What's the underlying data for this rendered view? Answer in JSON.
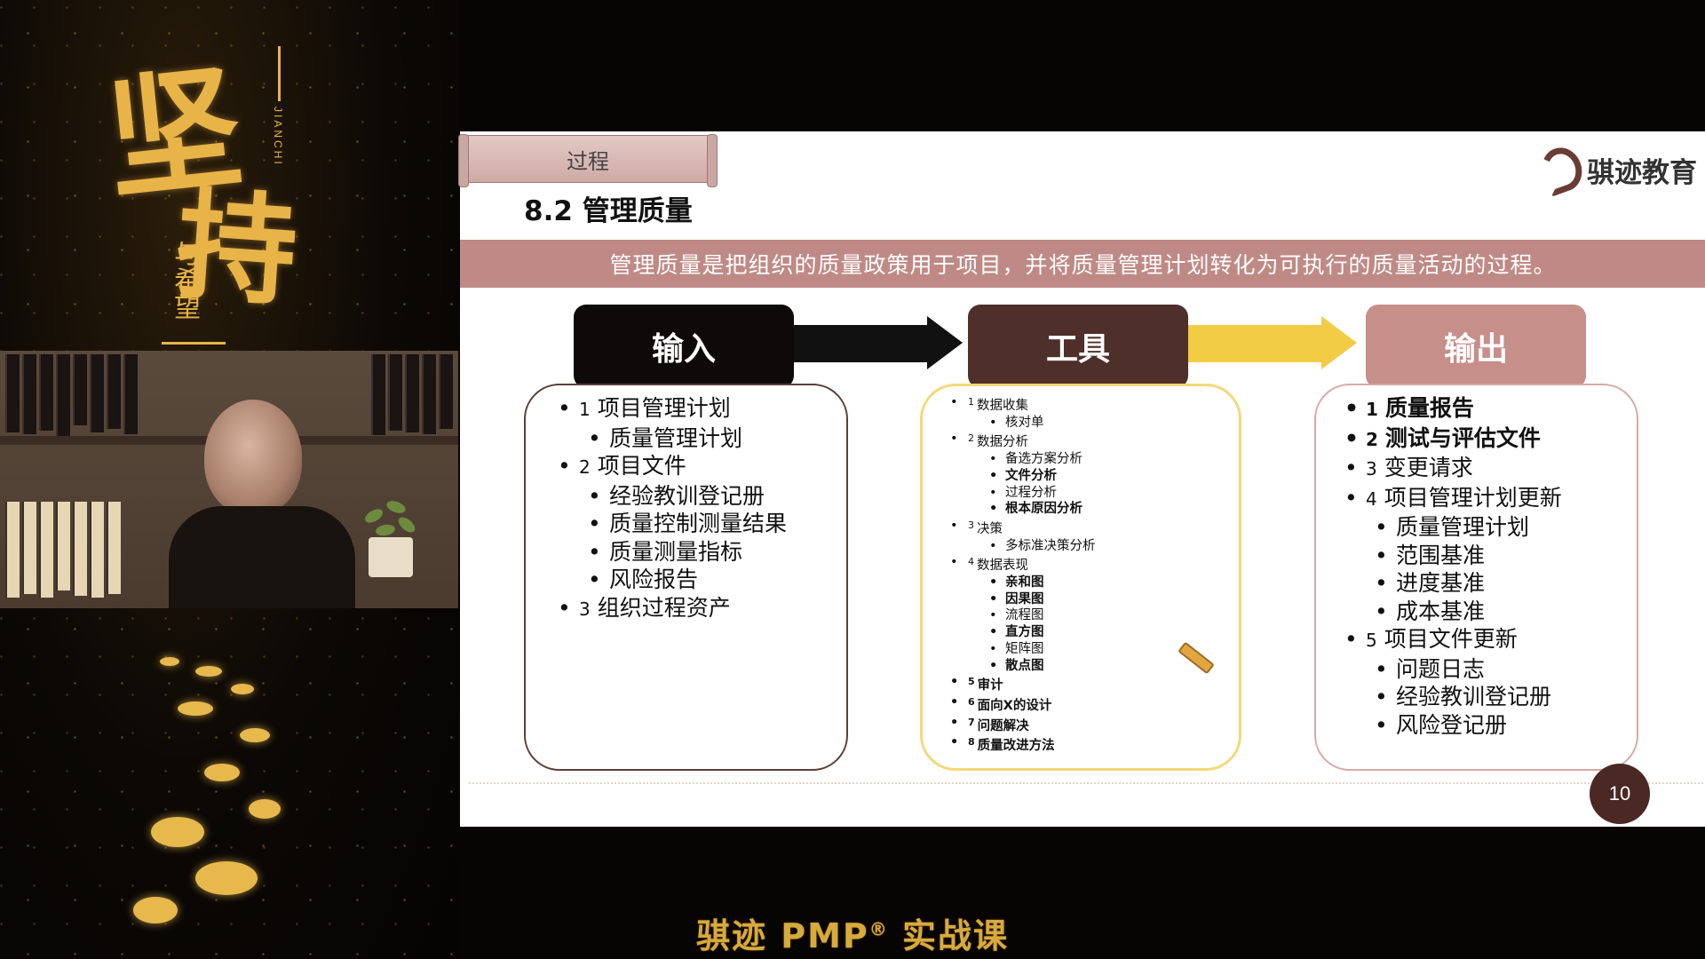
{
  "left_panel": {
    "calligraphy_main_1": "坚",
    "calligraphy_main_2": "持",
    "calligraphy_small": "与希望",
    "pinyin": "JIANCHI"
  },
  "slide": {
    "process_tag": "过程",
    "title": "8.2 管理质量",
    "logo_text": "骐迹教育",
    "definition": "管理质量是把组织的质量政策用于项目，并将质量管理计划转化为可执行的质量活动的过程。",
    "inputs_heading": "输入",
    "tools_heading": "工具",
    "outputs_heading": "输出",
    "inputs": [
      {
        "num": "1",
        "text": "项目管理计划",
        "level": 1
      },
      {
        "num": "",
        "text": "质量管理计划",
        "level": 2
      },
      {
        "num": "2",
        "text": "项目文件",
        "level": 1
      },
      {
        "num": "",
        "text": "经验教训登记册",
        "level": 2
      },
      {
        "num": "",
        "text": "质量控制测量结果",
        "level": 2
      },
      {
        "num": "",
        "text": "质量测量指标",
        "level": 2
      },
      {
        "num": "",
        "text": "风险报告",
        "level": 2
      },
      {
        "num": "3",
        "text": "组织过程资产",
        "level": 1
      }
    ],
    "tools": [
      {
        "num": "1",
        "text": "数据收集",
        "level": 1,
        "bold": false
      },
      {
        "num": "",
        "text": "核对单",
        "level": 2,
        "bold": false
      },
      {
        "num": "2",
        "text": "数据分析",
        "level": 1,
        "bold": false
      },
      {
        "num": "",
        "text": "备选方案分析",
        "level": 2,
        "bold": false
      },
      {
        "num": "",
        "text": "文件分析",
        "level": 2,
        "bold": true
      },
      {
        "num": "",
        "text": "过程分析",
        "level": 2,
        "bold": false
      },
      {
        "num": "",
        "text": "根本原因分析",
        "level": 2,
        "bold": true
      },
      {
        "num": "3",
        "text": "决策",
        "level": 1,
        "bold": false
      },
      {
        "num": "",
        "text": "多标准决策分析",
        "level": 2,
        "bold": false
      },
      {
        "num": "4",
        "text": "数据表现",
        "level": 1,
        "bold": false
      },
      {
        "num": "",
        "text": "亲和图",
        "level": 2,
        "bold": true
      },
      {
        "num": "",
        "text": "因果图",
        "level": 2,
        "bold": true
      },
      {
        "num": "",
        "text": "流程图",
        "level": 2,
        "bold": false
      },
      {
        "num": "",
        "text": "直方图",
        "level": 2,
        "bold": true
      },
      {
        "num": "",
        "text": "矩阵图",
        "level": 2,
        "bold": false
      },
      {
        "num": "",
        "text": "散点图",
        "level": 2,
        "bold": true
      },
      {
        "num": "5",
        "text": "审计",
        "level": 1,
        "bold": true
      },
      {
        "num": "6",
        "text": "面向X的设计",
        "level": 1,
        "bold": true
      },
      {
        "num": "7",
        "text": "问题解决",
        "level": 1,
        "bold": true
      },
      {
        "num": "8",
        "text": "质量改进方法",
        "level": 1,
        "bold": true
      }
    ],
    "outputs": [
      {
        "num": "1",
        "text": "质量报告",
        "level": 1,
        "bold": true
      },
      {
        "num": "2",
        "text": "测试与评估文件",
        "level": 1,
        "bold": true
      },
      {
        "num": "3",
        "text": "变更请求",
        "level": 1,
        "bold": false
      },
      {
        "num": "4",
        "text": "项目管理计划更新",
        "level": 1,
        "bold": false
      },
      {
        "num": "",
        "text": "质量管理计划",
        "level": 2,
        "bold": false
      },
      {
        "num": "",
        "text": "范围基准",
        "level": 2,
        "bold": false
      },
      {
        "num": "",
        "text": "进度基准",
        "level": 2,
        "bold": false
      },
      {
        "num": "",
        "text": "成本基准",
        "level": 2,
        "bold": false
      },
      {
        "num": "5",
        "text": "项目文件更新",
        "level": 1,
        "bold": false
      },
      {
        "num": "",
        "text": "问题日志",
        "level": 2,
        "bold": false
      },
      {
        "num": "",
        "text": "经验教训登记册",
        "level": 2,
        "bold": false
      },
      {
        "num": "",
        "text": "风险登记册",
        "level": 2,
        "bold": false
      }
    ],
    "page_number": "10"
  },
  "caption": {
    "text_before": "骐迹 PMP",
    "registered": "®",
    "text_after": " 实战课"
  },
  "colors": {
    "banner": "#bf8a85",
    "inputs_head": "#0e0a09",
    "tools_head": "#4e2f2a",
    "outputs_head": "#c68f8a",
    "tool_arrow": "#f2cc45",
    "caption": "#d7aa3c"
  },
  "icons": [
    "pencil-icon",
    "logo-mark-icon"
  ]
}
